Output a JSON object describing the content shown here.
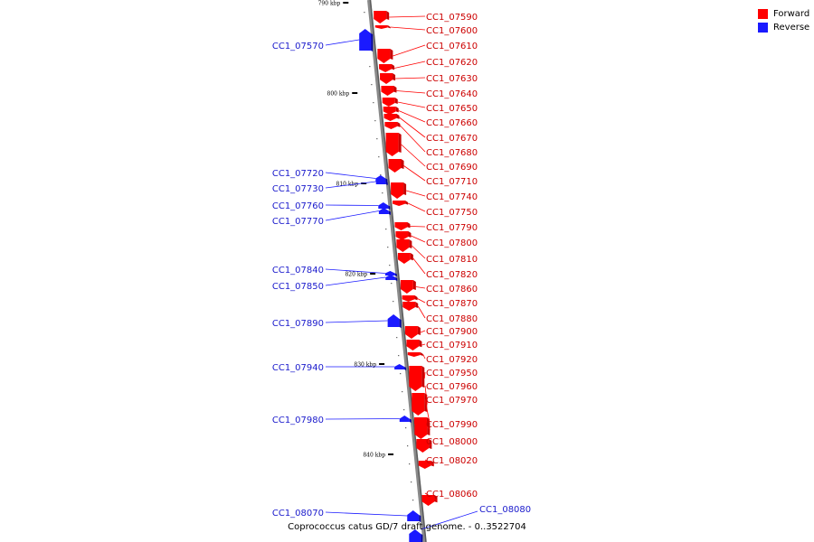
{
  "legend": {
    "forward": {
      "label": "Forward",
      "color": "#ff0000"
    },
    "reverse": {
      "label": "Reverse",
      "color": "#1a1aff"
    }
  },
  "caption": "Coprococcus catus GD/7 draft genome. - 0..3522704",
  "kbp_labels": [
    "790 kbp",
    "800 kbp",
    "810 kbp",
    "820 kbp",
    "830 kbp",
    "840 kbp"
  ],
  "genes_forward": [
    "CC1_07590",
    "CC1_07600",
    "CC1_07610",
    "CC1_07620",
    "CC1_07630",
    "CC1_07640",
    "CC1_07650",
    "CC1_07660",
    "CC1_07670",
    "CC1_07680",
    "CC1_07690",
    "CC1_07710",
    "CC1_07740",
    "CC1_07750",
    "CC1_07790",
    "CC1_07800",
    "CC1_07810",
    "CC1_07820",
    "CC1_07860",
    "CC1_07870",
    "CC1_07880",
    "CC1_07900",
    "CC1_07910",
    "CC1_07920",
    "CC1_07950",
    "CC1_07960",
    "CC1_07970",
    "CC1_07990",
    "CC1_08000",
    "CC1_08020",
    "CC1_08060"
  ],
  "genes_reverse": [
    "CC1_07570",
    "CC1_07720",
    "CC1_07730",
    "CC1_07760",
    "CC1_07770",
    "CC1_07840",
    "CC1_07850",
    "CC1_07890",
    "CC1_07940",
    "CC1_07980",
    "CC1_08070",
    "CC1_08080"
  ]
}
